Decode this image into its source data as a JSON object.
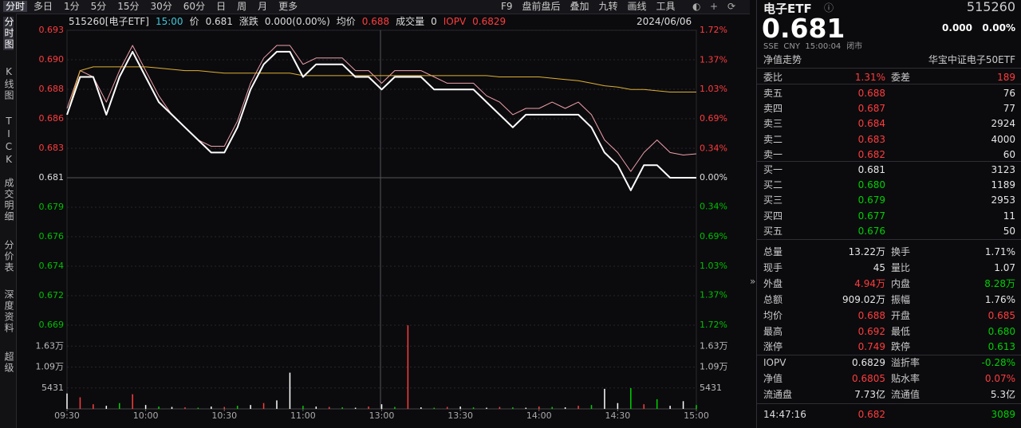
{
  "toolbar": {
    "tabs": [
      "分时",
      "多日",
      "1分",
      "5分",
      "15分",
      "30分",
      "60分",
      "日",
      "周",
      "月",
      "更多"
    ],
    "tools": [
      "F9",
      "盘前盘后",
      "叠加",
      "九转",
      "画线",
      "工具"
    ]
  },
  "side_tabs": [
    "分时图",
    "K线图",
    "TICK",
    "成交明细",
    "分价表",
    "深度资料",
    "超级"
  ],
  "chart_header": {
    "code": "515260[电子ETF]",
    "time": "15:00",
    "price_label": "价",
    "price": "0.681",
    "change_label": "涨跌",
    "change": "0.000(0.00%)",
    "avg_label": "均价",
    "avg": "0.688",
    "volume_label": "成交量",
    "volume": "0",
    "iopv_label": "IOPV",
    "iopv": "0.6829",
    "date": "2024/06/06"
  },
  "chart_data": [
    {
      "type": "line",
      "xlim": [
        0,
        240
      ],
      "xticks": [
        {
          "value": 0,
          "label": "09:30"
        },
        {
          "value": 30,
          "label": "10:00"
        },
        {
          "value": 60,
          "label": "10:30"
        },
        {
          "value": 90,
          "label": "11:00"
        },
        {
          "value": 120,
          "label": "13:00"
        },
        {
          "value": 150,
          "label": "13:30"
        },
        {
          "value": 180,
          "label": "14:00"
        },
        {
          "value": 210,
          "label": "14:30"
        },
        {
          "value": 240,
          "label": "15:00"
        }
      ],
      "ylim": [
        0.6693,
        0.6927
      ],
      "yticks": [
        {
          "value": 0.6927,
          "label": "0.693"
        },
        {
          "value": 0.69036,
          "label": "0.690"
        },
        {
          "value": 0.68802,
          "label": "0.688"
        },
        {
          "value": 0.68568,
          "label": "0.686"
        },
        {
          "value": 0.68334,
          "label": "0.683"
        },
        {
          "value": 0.681,
          "label": "0.681"
        },
        {
          "value": 0.67866,
          "label": "0.679"
        },
        {
          "value": 0.67632,
          "label": "0.676"
        },
        {
          "value": 0.67398,
          "label": "0.674"
        },
        {
          "value": 0.67164,
          "label": "0.672"
        },
        {
          "value": 0.6693,
          "label": "0.669"
        }
      ],
      "y2lim": [
        -1.72,
        1.72
      ],
      "y2ticks": [
        {
          "value": 1.72,
          "label": "1.72%"
        },
        {
          "value": 1.37,
          "label": "1.37%"
        },
        {
          "value": 1.03,
          "label": "1.03%"
        },
        {
          "value": 0.69,
          "label": "0.69%"
        },
        {
          "value": 0.34,
          "label": "0.34%"
        },
        {
          "value": 0,
          "label": "0.00%"
        },
        {
          "value": -0.34,
          "label": "0.34%"
        },
        {
          "value": -0.69,
          "label": "0.69%"
        },
        {
          "value": -1.03,
          "label": "1.03%"
        },
        {
          "value": -1.37,
          "label": "1.37%"
        },
        {
          "value": -1.72,
          "label": "1.72%"
        }
      ],
      "grid": true,
      "x": [
        0,
        5,
        10,
        15,
        20,
        25,
        30,
        35,
        40,
        45,
        50,
        55,
        60,
        65,
        70,
        75,
        80,
        85,
        90,
        95,
        100,
        105,
        110,
        115,
        120,
        125,
        130,
        135,
        140,
        145,
        150,
        155,
        160,
        165,
        170,
        175,
        180,
        185,
        190,
        195,
        200,
        205,
        210,
        215,
        220,
        225,
        230,
        235,
        240
      ],
      "series": [
        {
          "color": "#f0a0a8",
          "width": 1,
          "values": [
            0.6865,
            0.6895,
            0.689,
            0.687,
            0.6895,
            0.6915,
            0.6895,
            0.6875,
            0.686,
            0.685,
            0.684,
            0.6835,
            0.6835,
            0.6855,
            0.6885,
            0.6905,
            0.6915,
            0.6915,
            0.69,
            0.6905,
            0.6905,
            0.6905,
            0.6895,
            0.6895,
            0.6885,
            0.6895,
            0.6895,
            0.6895,
            0.689,
            0.6885,
            0.6885,
            0.6885,
            0.6875,
            0.687,
            0.686,
            0.6865,
            0.6865,
            0.687,
            0.6865,
            0.687,
            0.686,
            0.684,
            0.683,
            0.6815,
            0.683,
            0.684,
            0.683,
            0.6828,
            0.6829
          ]
        },
        {
          "color": "#e0b030",
          "width": 1,
          "values": [
            0.686,
            0.6895,
            0.6898,
            0.6898,
            0.6898,
            0.6898,
            0.6898,
            0.6897,
            0.6896,
            0.6895,
            0.6895,
            0.6894,
            0.6893,
            0.6893,
            0.6893,
            0.6893,
            0.6893,
            0.6893,
            0.6891,
            0.6891,
            0.6891,
            0.6891,
            0.6891,
            0.6891,
            0.6891,
            0.6891,
            0.6891,
            0.6891,
            0.6891,
            0.6891,
            0.6891,
            0.6891,
            0.6891,
            0.689,
            0.689,
            0.689,
            0.689,
            0.6889,
            0.6888,
            0.6887,
            0.6885,
            0.6883,
            0.6882,
            0.688,
            0.688,
            0.6879,
            0.6878,
            0.6878,
            0.6878
          ]
        },
        {
          "color": "#ffffff",
          "width": 2,
          "values": [
            0.686,
            0.689,
            0.689,
            0.686,
            0.689,
            0.691,
            0.689,
            0.687,
            0.686,
            0.685,
            0.684,
            0.683,
            0.683,
            0.685,
            0.688,
            0.69,
            0.691,
            0.691,
            0.689,
            0.69,
            0.69,
            0.69,
            0.689,
            0.689,
            0.688,
            0.689,
            0.689,
            0.689,
            0.688,
            0.688,
            0.688,
            0.688,
            0.687,
            0.686,
            0.685,
            0.686,
            0.686,
            0.686,
            0.686,
            0.686,
            0.685,
            0.683,
            0.682,
            0.68,
            0.682,
            0.682,
            0.681,
            0.681,
            0.681
          ]
        }
      ]
    },
    {
      "type": "bar",
      "xlim": [
        0,
        240
      ],
      "ylim": [
        0,
        21724
      ],
      "yticks": [
        5431,
        {
          "value": 10862,
          "label": "1.09万"
        },
        {
          "value": 16293,
          "label": "1.63万"
        }
      ],
      "x": [
        0,
        5,
        10,
        15,
        20,
        25,
        30,
        35,
        40,
        45,
        50,
        55,
        60,
        65,
        70,
        75,
        80,
        85,
        90,
        95,
        100,
        105,
        110,
        115,
        120,
        125,
        130,
        135,
        140,
        145,
        150,
        155,
        160,
        165,
        170,
        175,
        180,
        185,
        190,
        195,
        200,
        205,
        210,
        215,
        220,
        225,
        230,
        235,
        240
      ],
      "values": [
        4000,
        3000,
        1200,
        800,
        1500,
        3800,
        1000,
        600,
        500,
        400,
        300,
        600,
        500,
        800,
        1000,
        1500,
        2200,
        9400,
        800,
        600,
        500,
        400,
        300,
        600,
        1200,
        500,
        21700,
        400,
        300,
        500,
        600,
        400,
        300,
        500,
        400,
        300,
        600,
        500,
        400,
        800,
        1000,
        5200,
        1500,
        5400,
        1200,
        2500,
        800,
        2000,
        1000
      ],
      "colors": [
        "#ffffff",
        "#ff3c3c",
        "#ff3c3c",
        "#ffffff",
        "#00d000",
        "#ff3c3c",
        "#ffffff",
        "#00d000",
        "#ffffff",
        "#ff3c3c",
        "#00d000",
        "#ffffff",
        "#ff3c3c",
        "#00d000",
        "#ffffff",
        "#ff3c3c",
        "#ffffff",
        "#ffffff",
        "#00d000",
        "#ffffff",
        "#ff3c3c",
        "#00d000",
        "#ffffff",
        "#ff3c3c",
        "#ffffff",
        "#00d000",
        "#ff3c3c",
        "#ffffff",
        "#00d000",
        "#ff3c3c",
        "#ffffff",
        "#00d000",
        "#ffffff",
        "#ff3c3c",
        "#00d000",
        "#ffffff",
        "#ff3c3c",
        "#00d000",
        "#ffffff",
        "#ff3c3c",
        "#00d000",
        "#ffffff",
        "#ffffff",
        "#00d000",
        "#ff3c3c",
        "#00d000",
        "#ffffff",
        "#ffffff",
        "#00d000"
      ]
    }
  ],
  "quote": {
    "name": "电子ETF",
    "code": "515260",
    "price": "0.681",
    "change": "0.000",
    "pct": "0.00%",
    "meta": [
      "SSE",
      "CNY",
      "15:00:04",
      "闭市"
    ],
    "nav_link": "净值走势",
    "fund_name": "华宝中证电子50ETF"
  },
  "order_ratio": {
    "label": "委比",
    "value": "1.31%",
    "label2": "委差",
    "value2": "189"
  },
  "asks": [
    {
      "label": "卖五",
      "price": "0.688",
      "volume": "76",
      "color": "#ff3c3c"
    },
    {
      "label": "卖四",
      "price": "0.687",
      "volume": "77",
      "color": "#ff3c3c"
    },
    {
      "label": "卖三",
      "price": "0.684",
      "volume": "2924",
      "color": "#ff3c3c"
    },
    {
      "label": "卖二",
      "price": "0.683",
      "volume": "4000",
      "color": "#ff3c3c"
    },
    {
      "label": "卖一",
      "price": "0.682",
      "volume": "60",
      "color": "#ff3c3c"
    }
  ],
  "bids": [
    {
      "label": "买一",
      "price": "0.681",
      "volume": "3123",
      "color": "#e6e6e6"
    },
    {
      "label": "买二",
      "price": "0.680",
      "volume": "1189",
      "color": "#00d000"
    },
    {
      "label": "买三",
      "price": "0.679",
      "volume": "2953",
      "color": "#00d000"
    },
    {
      "label": "买四",
      "price": "0.677",
      "volume": "11",
      "color": "#00d000"
    },
    {
      "label": "买五",
      "price": "0.676",
      "volume": "50",
      "color": "#00d000"
    }
  ],
  "stats": [
    {
      "label": "总量",
      "value": "13.22万",
      "color": "#e6e6e6",
      "label2": "换手",
      "value2": "1.71%",
      "color2": "#e6e6e6"
    },
    {
      "label": "现手",
      "value": "45",
      "color": "#e6e6e6",
      "label2": "量比",
      "value2": "1.07",
      "color2": "#e6e6e6"
    },
    {
      "label": "外盘",
      "value": "4.94万",
      "color": "#ff3c3c",
      "label2": "内盘",
      "value2": "8.28万",
      "color2": "#00d000"
    },
    {
      "label": "总额",
      "value": "909.02万",
      "color": "#e6e6e6",
      "label2": "振幅",
      "value2": "1.76%",
      "color2": "#e6e6e6"
    },
    {
      "label": "均价",
      "value": "0.688",
      "color": "#ff3c3c",
      "label2": "开盘",
      "value2": "0.685",
      "color2": "#ff3c3c"
    },
    {
      "label": "最高",
      "value": "0.692",
      "color": "#ff3c3c",
      "label2": "最低",
      "value2": "0.680",
      "color2": "#00d000"
    },
    {
      "label": "涨停",
      "value": "0.749",
      "color": "#ff3c3c",
      "label2": "跌停",
      "value2": "0.613",
      "color2": "#00d000"
    },
    {
      "label": "IOPV",
      "value": "0.6829",
      "color": "#e6e6e6",
      "label2": "溢折率",
      "value2": "-0.28%",
      "color2": "#00d000"
    },
    {
      "label": "净值",
      "value": "0.6805",
      "color": "#ff3c3c",
      "label2": "贴水率",
      "value2": "0.07%",
      "color2": "#ff3c3c"
    },
    {
      "label": "流通盘",
      "value": "7.73亿",
      "color": "#e6e6e6",
      "label2": "流通值",
      "value2": "5.3亿",
      "color2": "#e6e6e6"
    }
  ],
  "ticks": [
    {
      "time": "14:47:16",
      "price": "0.682",
      "volume": "3089"
    }
  ]
}
